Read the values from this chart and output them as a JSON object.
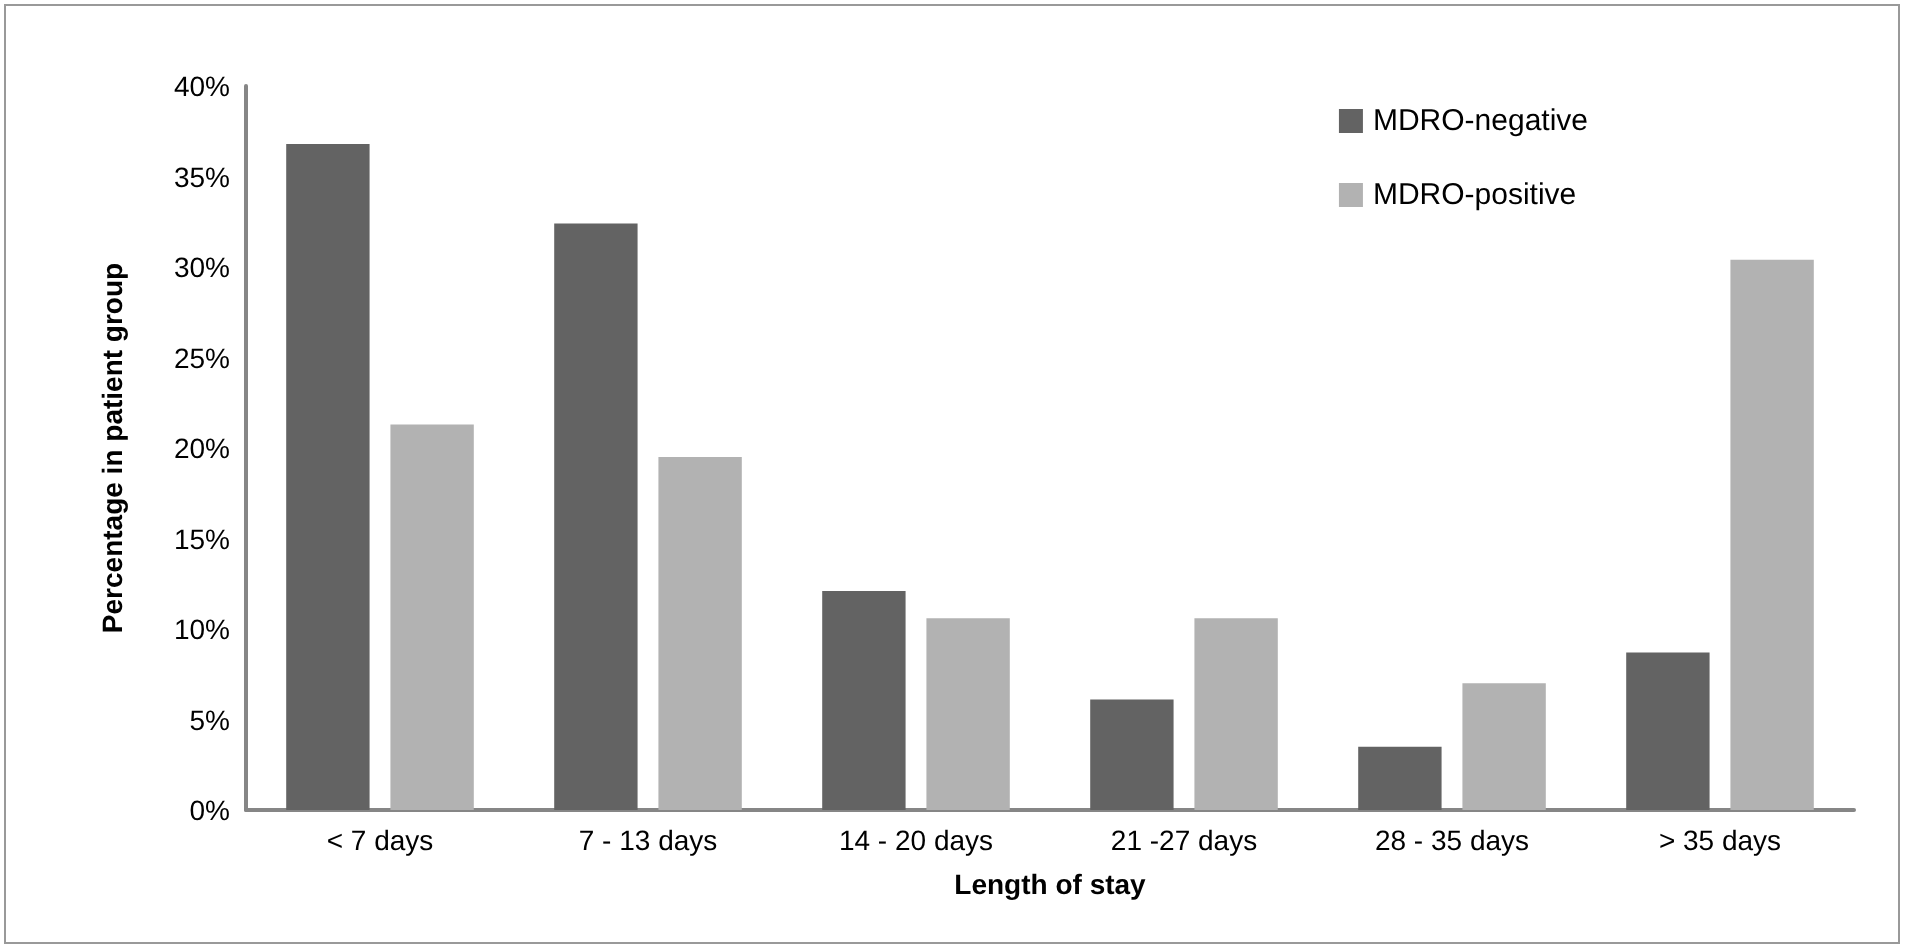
{
  "chart_data": {
    "type": "bar",
    "xlabel": "Length of stay",
    "ylabel": "Percentage in patient group",
    "categories": [
      "< 7 days",
      "7 - 13 days",
      "14 - 20 days",
      "21 -27 days",
      "28 - 35 days",
      "> 35 days"
    ],
    "series": [
      {
        "name": "MDRO-negative",
        "color": "#636363",
        "values": [
          36.8,
          32.4,
          12.1,
          6.1,
          3.5,
          8.7
        ]
      },
      {
        "name": "MDRO-positive",
        "color": "#b2b2b2",
        "values": [
          21.3,
          19.5,
          10.6,
          10.6,
          7.0,
          30.4
        ]
      }
    ],
    "ylim": [
      0,
      40
    ],
    "yticks": [
      {
        "value": 0,
        "label": "0%"
      },
      {
        "value": 5,
        "label": "5%"
      },
      {
        "value": 10,
        "label": "10%"
      },
      {
        "value": 15,
        "label": "15%"
      },
      {
        "value": 20,
        "label": "20%"
      },
      {
        "value": 25,
        "label": "25%"
      },
      {
        "value": 30,
        "label": "30%"
      },
      {
        "value": 35,
        "label": "35%"
      },
      {
        "value": 40,
        "label": "40%"
      }
    ],
    "grid": false,
    "legend": "top right"
  }
}
